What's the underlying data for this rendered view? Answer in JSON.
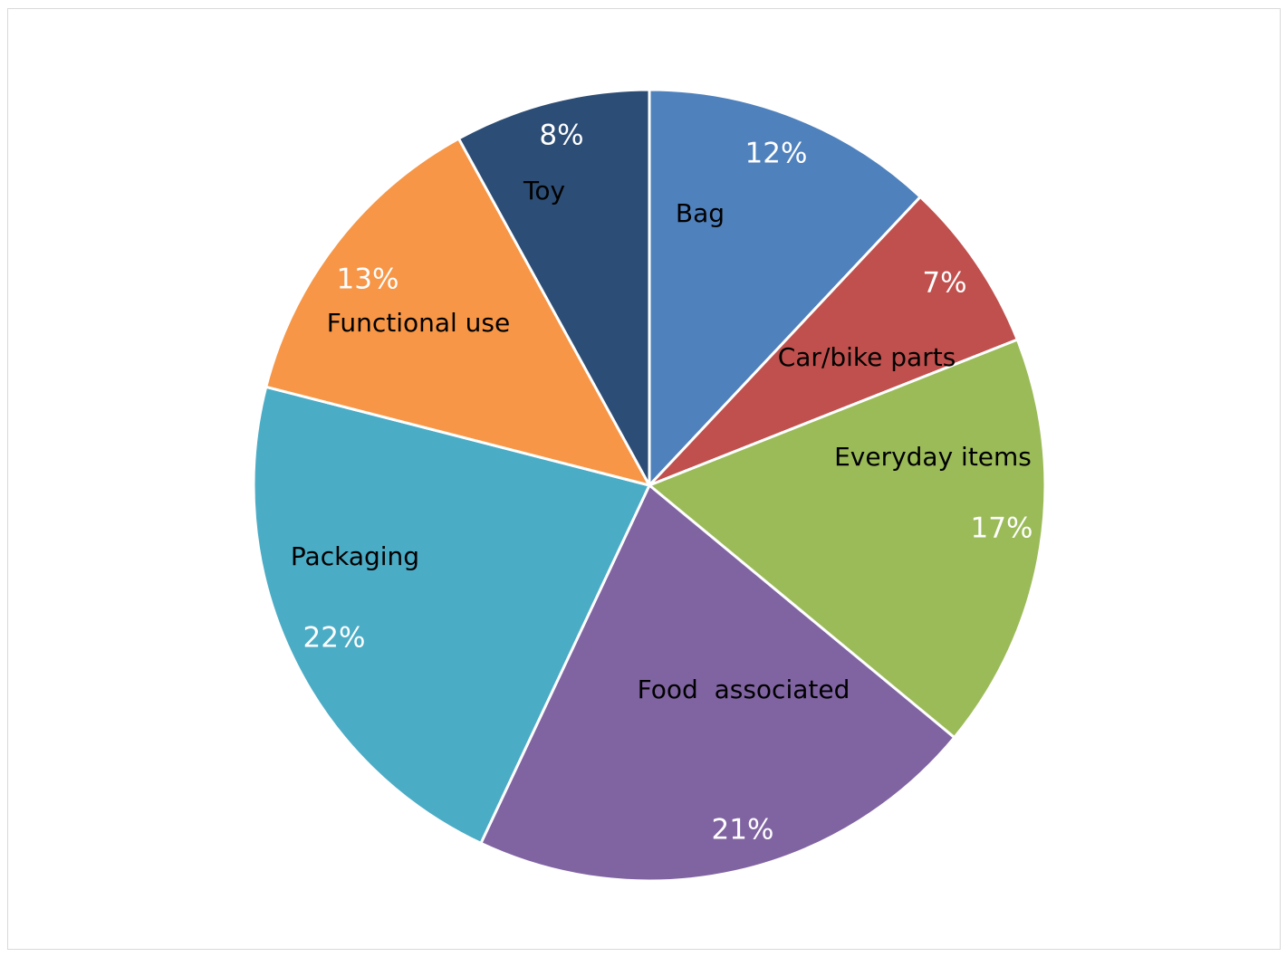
{
  "chart_data": {
    "type": "pie",
    "title": "",
    "start_angle_deg": 0,
    "direction": "clockwise",
    "slices": [
      {
        "label": "Bag",
        "value": 12,
        "value_label": "12%",
        "color": "#4F81BD"
      },
      {
        "label": "Car/bike parts",
        "value": 7,
        "value_label": "7%",
        "color": "#C0504D"
      },
      {
        "label": "Everyday items",
        "value": 17,
        "value_label": "17%",
        "color": "#9BBB59"
      },
      {
        "label": "Food  associated",
        "value": 21,
        "value_label": "21%",
        "color": "#8064A2"
      },
      {
        "label": "Packaging",
        "value": 22,
        "value_label": "22%",
        "color": "#4BACC6"
      },
      {
        "label": "Functional use",
        "value": 13,
        "value_label": "13%",
        "color": "#F79646"
      },
      {
        "label": "Toy",
        "value": 8,
        "value_label": "8%",
        "color": "#2C4D75"
      }
    ]
  }
}
